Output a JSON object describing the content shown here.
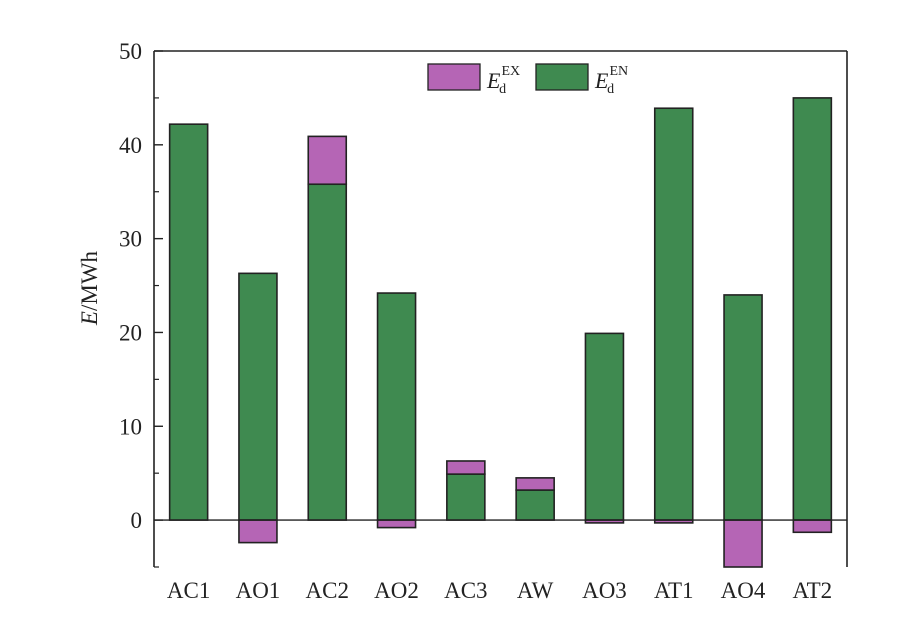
{
  "chart_data": {
    "type": "bar",
    "stacked": true,
    "categories": [
      "AC1",
      "AO1",
      "AC2",
      "AO2",
      "AC3",
      "AW",
      "AO3",
      "AT1",
      "AO4",
      "AT2"
    ],
    "series": [
      {
        "name": "E_d^EX",
        "label_base": "E",
        "label_sub": "d",
        "label_sup": "EX",
        "color": "#b565b5",
        "values": [
          0,
          -2.4,
          5.1,
          -0.8,
          1.4,
          1.3,
          -0.3,
          -0.3,
          -5.0,
          -1.3
        ]
      },
      {
        "name": "E_d^EN",
        "label_base": "E",
        "label_sub": "d",
        "label_sup": "EN",
        "color": "#3f8a50",
        "values": [
          42.2,
          26.3,
          35.8,
          24.2,
          4.9,
          3.2,
          19.9,
          43.9,
          24.0,
          45.0
        ]
      }
    ],
    "ylabel_italic": "E",
    "ylabel_rest": "/MWh",
    "ylim": [
      -5,
      50
    ],
    "yticks": [
      "0",
      "10",
      "20",
      "30",
      "40",
      "50"
    ],
    "legend_position": "top"
  }
}
